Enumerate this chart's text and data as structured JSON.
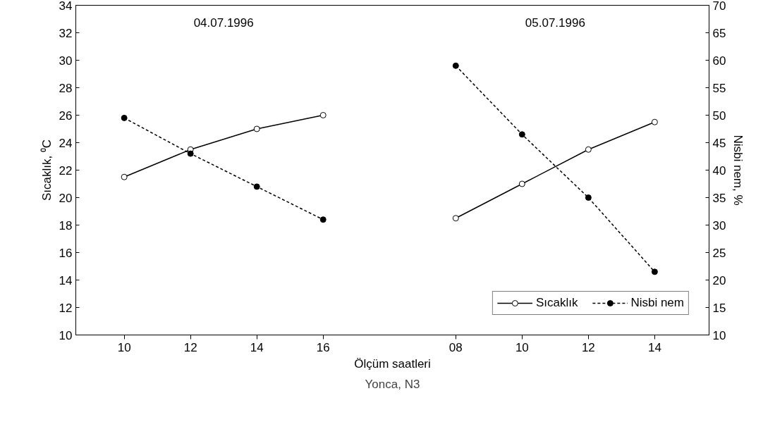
{
  "chart_data": {
    "type": "line",
    "xlabel": "Ölçüm saatleri",
    "ylabel": "Sıcaklık, ⁰C",
    "y2label": "Nisbi nem, %",
    "categories": [
      "10",
      "12",
      "14",
      "16",
      null,
      "08",
      "10",
      "12",
      "14"
    ],
    "series": [
      {
        "name": "Sıcaklık",
        "color": "#000000",
        "marker": "circle",
        "line_style": "solid",
        "values": [
          21.5,
          23.5,
          25,
          26,
          null,
          18.5,
          21,
          23.5,
          25.5
        ]
      },
      {
        "name": "Nisbi nem",
        "color": "#000000",
        "marker": "circle",
        "line_style": "dashed",
        "axis": "y2",
        "values": [
          49.5,
          43,
          37,
          31,
          null,
          59,
          46.5,
          35,
          21.5
        ]
      }
    ],
    "ylim": [
      10,
      34
    ],
    "yticks": [
      10,
      12,
      14,
      16,
      18,
      20,
      22,
      24,
      26,
      28,
      30,
      32,
      34
    ],
    "y2lim": [
      10,
      70
    ],
    "y2ticks": [
      10,
      15,
      20,
      25,
      30,
      35,
      40,
      45,
      50,
      55,
      60,
      65,
      70
    ],
    "annotations": [
      "04.07.1996",
      "05.07.1996",
      "Yonca, N3"
    ],
    "legend": "bottom right",
    "grid": false
  }
}
